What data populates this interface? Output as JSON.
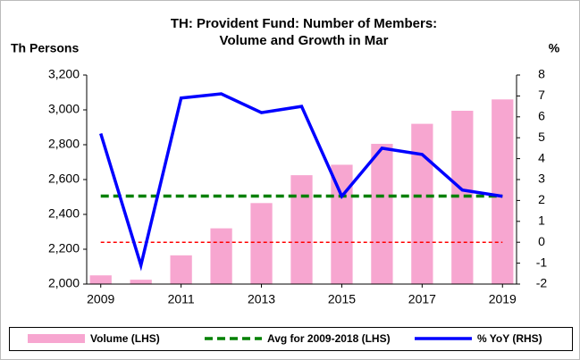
{
  "chart_data": {
    "type": "combo",
    "title": [
      "TH: Provident Fund: Number of Members:",
      "Volume and Growth in Mar"
    ],
    "ylabel": "Th Persons",
    "y2label": "%",
    "x": [
      2009,
      2010,
      2011,
      2012,
      2013,
      2014,
      2015,
      2016,
      2017,
      2018,
      2019
    ],
    "xlim": [
      2008.65,
      2019.35
    ],
    "xticks": [
      2009,
      2011,
      2013,
      2015,
      2017,
      2019
    ],
    "ylim": [
      2000,
      3200
    ],
    "yticks": [
      {
        "value": 2000,
        "label": "2,000"
      },
      {
        "value": 2200,
        "label": "2,200"
      },
      {
        "value": 2400,
        "label": "2,400"
      },
      {
        "value": 2600,
        "label": "2,600"
      },
      {
        "value": 2800,
        "label": "2,800"
      },
      {
        "value": 3000,
        "label": "3,000"
      },
      {
        "value": 3200,
        "label": "3,200"
      }
    ],
    "y2lim": [
      -2,
      8
    ],
    "y2ticks": [
      -2,
      -1,
      0,
      1,
      2,
      3,
      4,
      5,
      6,
      7,
      8
    ],
    "series": [
      {
        "name": "Volume (LHS)",
        "type": "bar",
        "color": "#f7a6d0",
        "values": [
          2050,
          2025,
          2165,
          2320,
          2465,
          2625,
          2685,
          2805,
          2920,
          2995,
          3060
        ]
      },
      {
        "name": "Avg for 2009-2018 (LHS)",
        "type": "line",
        "line_style": "dashed",
        "color": "#008000",
        "values": [
          2505,
          2505,
          2505,
          2505,
          2505,
          2505,
          2505,
          2505,
          2505,
          2505,
          2505
        ]
      },
      {
        "name": "% YoY (RHS)",
        "type": "line",
        "axis": "y2",
        "color": "#0000ff",
        "values": [
          5.2,
          -1.1,
          6.9,
          7.1,
          6.2,
          6.5,
          2.2,
          4.5,
          4.2,
          2.5,
          2.2
        ]
      }
    ],
    "hlines": [
      {
        "value": 0,
        "axis": "y2",
        "color": "#ff0000"
      }
    ]
  }
}
